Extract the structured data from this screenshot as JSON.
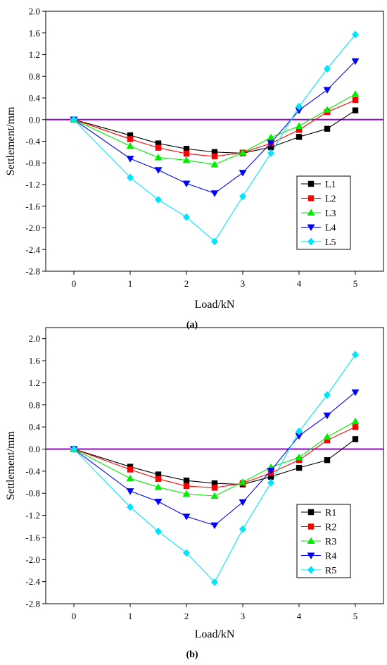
{
  "chart_data": [
    {
      "type": "line",
      "caption": "(a)",
      "xlabel": "Load/kN",
      "ylabel": "Settlement/mm",
      "xlim": [
        -0.5,
        5.5
      ],
      "ylim": [
        -2.8,
        2.0
      ],
      "xticks": [
        0,
        1,
        2,
        3,
        4,
        5
      ],
      "yticks": [
        -2.8,
        -2.4,
        -2.0,
        -1.6,
        -1.2,
        -0.8,
        -0.4,
        0.0,
        0.4,
        0.8,
        1.2,
        1.6,
        2.0
      ],
      "x": [
        0,
        1,
        1.5,
        2,
        2.5,
        3,
        3.5,
        4,
        4.5,
        5
      ],
      "zero_line_color": "#9900cc",
      "legend_position": "lower-right",
      "grid": false,
      "series": [
        {
          "name": "L1",
          "color": "#000000",
          "marker": "square",
          "values": [
            0,
            -0.29,
            -0.44,
            -0.54,
            -0.6,
            -0.62,
            -0.51,
            -0.32,
            -0.17,
            0.17
          ]
        },
        {
          "name": "L2",
          "color": "#ff0000",
          "marker": "square",
          "values": [
            0,
            -0.36,
            -0.52,
            -0.63,
            -0.68,
            -0.61,
            -0.44,
            -0.19,
            0.14,
            0.36
          ]
        },
        {
          "name": "L3",
          "color": "#00ee00",
          "marker": "triangle-up",
          "values": [
            0,
            -0.49,
            -0.7,
            -0.75,
            -0.83,
            -0.61,
            -0.33,
            -0.12,
            0.18,
            0.47
          ]
        },
        {
          "name": "L4",
          "color": "#0000ff",
          "marker": "triangle-down",
          "values": [
            0,
            -0.72,
            -0.93,
            -1.18,
            -1.36,
            -0.98,
            -0.43,
            0.17,
            0.55,
            1.08
          ]
        },
        {
          "name": "L5",
          "color": "#00e5ff",
          "marker": "diamond",
          "values": [
            0,
            -1.07,
            -1.48,
            -1.8,
            -2.25,
            -1.42,
            -0.62,
            0.24,
            0.94,
            1.57
          ]
        }
      ]
    },
    {
      "type": "line",
      "caption": "(b)",
      "xlabel": "Load/kN",
      "ylabel": "Settlement/mm",
      "xlim": [
        -0.5,
        5.5
      ],
      "ylim": [
        -2.8,
        2.2
      ],
      "xticks": [
        0,
        1,
        2,
        3,
        4,
        5
      ],
      "yticks": [
        -2.8,
        -2.4,
        -2.0,
        -1.6,
        -1.2,
        -0.8,
        -0.4,
        0.0,
        0.4,
        0.8,
        1.2,
        1.6,
        2.0
      ],
      "x": [
        0,
        1,
        1.5,
        2,
        2.5,
        3,
        3.5,
        4,
        4.5,
        5
      ],
      "zero_line_color": "#9900cc",
      "legend_position": "lower-right",
      "grid": false,
      "series": [
        {
          "name": "R1",
          "color": "#000000",
          "marker": "square",
          "values": [
            0,
            -0.32,
            -0.46,
            -0.57,
            -0.62,
            -0.64,
            -0.5,
            -0.34,
            -0.2,
            0.18
          ]
        },
        {
          "name": "R2",
          "color": "#ff0000",
          "marker": "square",
          "values": [
            0,
            -0.37,
            -0.54,
            -0.67,
            -0.7,
            -0.62,
            -0.43,
            -0.2,
            0.16,
            0.4
          ]
        },
        {
          "name": "R3",
          "color": "#00ee00",
          "marker": "triangle-up",
          "values": [
            0,
            -0.53,
            -0.69,
            -0.81,
            -0.85,
            -0.6,
            -0.33,
            -0.15,
            0.22,
            0.5
          ]
        },
        {
          "name": "R4",
          "color": "#0000ff",
          "marker": "triangle-down",
          "values": [
            0,
            -0.76,
            -0.95,
            -1.22,
            -1.38,
            -0.96,
            -0.39,
            0.24,
            0.61,
            1.03
          ]
        },
        {
          "name": "R5",
          "color": "#00e5ff",
          "marker": "diamond",
          "values": [
            0,
            -1.05,
            -1.49,
            -1.88,
            -2.41,
            -1.45,
            -0.61,
            0.32,
            0.98,
            1.71
          ]
        }
      ]
    }
  ]
}
